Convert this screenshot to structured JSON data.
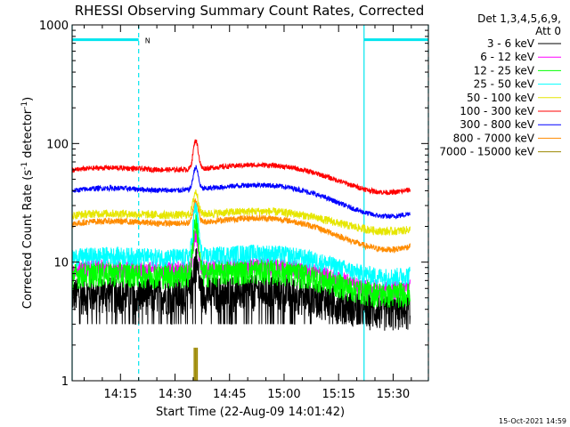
{
  "chart_data": {
    "type": "line",
    "title": "RHESSI Observing Summary Count Rates, Corrected",
    "xlabel": "Start Time (22-Aug-09 14:01:42)",
    "ylabel": "Corrected Count Rate (s⁻¹ detector⁻¹)",
    "ylabel_parts": {
      "main": "Corrected Count Rate (s",
      "exp1": "-1",
      "mid": " detector",
      "exp2": "-1",
      "end": ")"
    },
    "yscale": "log",
    "ylim": [
      1,
      1000
    ],
    "xlim_minutes": [
      0,
      98
    ],
    "y_ticks": [
      {
        "value": 1,
        "label": "1"
      },
      {
        "value": 10,
        "label": "10"
      },
      {
        "value": 100,
        "label": "100"
      },
      {
        "value": 1000,
        "label": "1000"
      }
    ],
    "x_ticks": [
      {
        "minute": 13.3,
        "label": "14:15"
      },
      {
        "minute": 28.3,
        "label": "14:30"
      },
      {
        "minute": 43.3,
        "label": "14:45"
      },
      {
        "minute": 58.3,
        "label": "15:00"
      },
      {
        "minute": 73.3,
        "label": "15:15"
      },
      {
        "minute": 88.3,
        "label": "15:30"
      }
    ],
    "legend_header": [
      "Det 1,3,4,5,6,9,",
      "Att 0"
    ],
    "legend_position": "right",
    "footer_date": "15-Oct-2021 14:59",
    "markers": {
      "color": "#00e5ee",
      "night_bars": [
        {
          "start": 0,
          "end": 18.3
        },
        {
          "start": 80.3,
          "end": 98
        }
      ],
      "night_level": 750,
      "saa_label": "N",
      "solid_lines": [
        0,
        80.3
      ],
      "dashed_lines": [
        18.3,
        98
      ]
    },
    "flare_peak_minute": 34,
    "series": [
      {
        "name": "3 - 6 keV",
        "color": "#000000",
        "base": 5.2,
        "amp": 0.3,
        "noise": 0.35,
        "flare": 5.0,
        "dip_min": 3
      },
      {
        "name": "6 - 12 keV",
        "color": "#ff00ff",
        "base": 8.2,
        "amp": 0.35,
        "noise": 0.18,
        "flare": 8.0
      },
      {
        "name": "12 - 25 keV",
        "color": "#00ff00",
        "base": 7.5,
        "amp": 0.35,
        "noise": 0.25,
        "flare": 14.0
      },
      {
        "name": "25 - 50 keV",
        "color": "#00ffff",
        "base": 10.5,
        "amp": 0.35,
        "noise": 0.18,
        "flare": 18.0
      },
      {
        "name": "50 - 100 keV",
        "color": "#e6e600",
        "base": 24,
        "amp": 0.3,
        "noise": 0.08,
        "flare": 14.0
      },
      {
        "name": "100 - 300 keV",
        "color": "#ff0000",
        "base": 57,
        "amp": 0.4,
        "noise": 0.05,
        "flare": 45.0
      },
      {
        "name": "300 - 800 keV",
        "color": "#0000ff",
        "base": 38,
        "amp": 0.45,
        "noise": 0.05,
        "flare": 22.0
      },
      {
        "name": "800 - 7000 keV",
        "color": "#ff8c00",
        "base": 20,
        "amp": 0.45,
        "noise": 0.06,
        "flare": 12.0
      },
      {
        "name": "7000 - 15000 keV",
        "color": "#9c8800",
        "base": 0,
        "amp": 0,
        "noise": 0,
        "flare": 0,
        "spike_only": true,
        "spike_value": 1.9
      }
    ]
  }
}
